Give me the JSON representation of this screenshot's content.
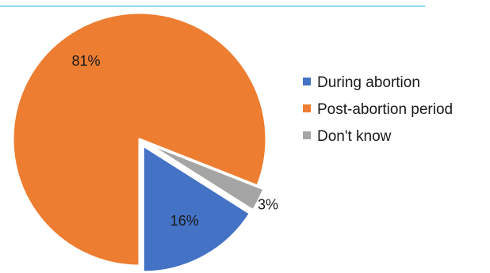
{
  "chart_data": {
    "type": "pie",
    "title": "",
    "categories": [
      "During abortion",
      "Post-abortion period",
      "Don't know"
    ],
    "values": [
      16,
      81,
      3
    ],
    "data_labels": [
      "16%",
      "81%",
      "3%"
    ],
    "colors": [
      "#4472c4",
      "#ed7d31",
      "#a5a5a5"
    ],
    "legend": {
      "position": "right",
      "entries": [
        "During abortion",
        "Post-abortion period",
        "Don't know"
      ]
    },
    "exploded": true
  },
  "colors": {
    "top_rule": "#4bbfe6",
    "slice_border": "#ffffff"
  }
}
